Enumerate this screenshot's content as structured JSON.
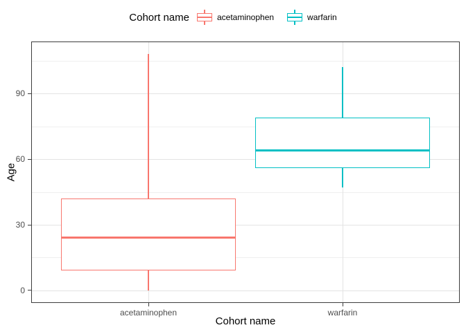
{
  "chart_data": {
    "type": "boxplot",
    "title": "",
    "legend_title": "Cohort name",
    "legend_position": "top",
    "xlabel": "Cohort name",
    "ylabel": "Age",
    "categories": [
      "acetaminophen",
      "warfarin"
    ],
    "yticks": [
      0,
      30,
      60,
      90
    ],
    "yticks_minor": [
      15,
      45,
      75,
      105
    ],
    "ylim": [
      -5.4,
      113.4
    ],
    "grid": "major and minor horizontal, major vertical at category centers",
    "series": [
      {
        "name": "acetaminophen",
        "color": "#F8766D",
        "whisker_min": 0,
        "q1": 9,
        "median": 24,
        "q3": 42,
        "whisker_max": 108
      },
      {
        "name": "warfarin",
        "color": "#00BFC4",
        "whisker_min": 47,
        "q1": 56,
        "median": 64,
        "q3": 79,
        "whisker_max": 102
      }
    ],
    "colors": {
      "grid_major": "#E3E3E3",
      "grid_minor": "#EFEFEF",
      "panel_border": "#3C3C3C",
      "tick_text": "#4D4D4D",
      "title_text": "#000000",
      "background": "#FFFFFF"
    }
  }
}
